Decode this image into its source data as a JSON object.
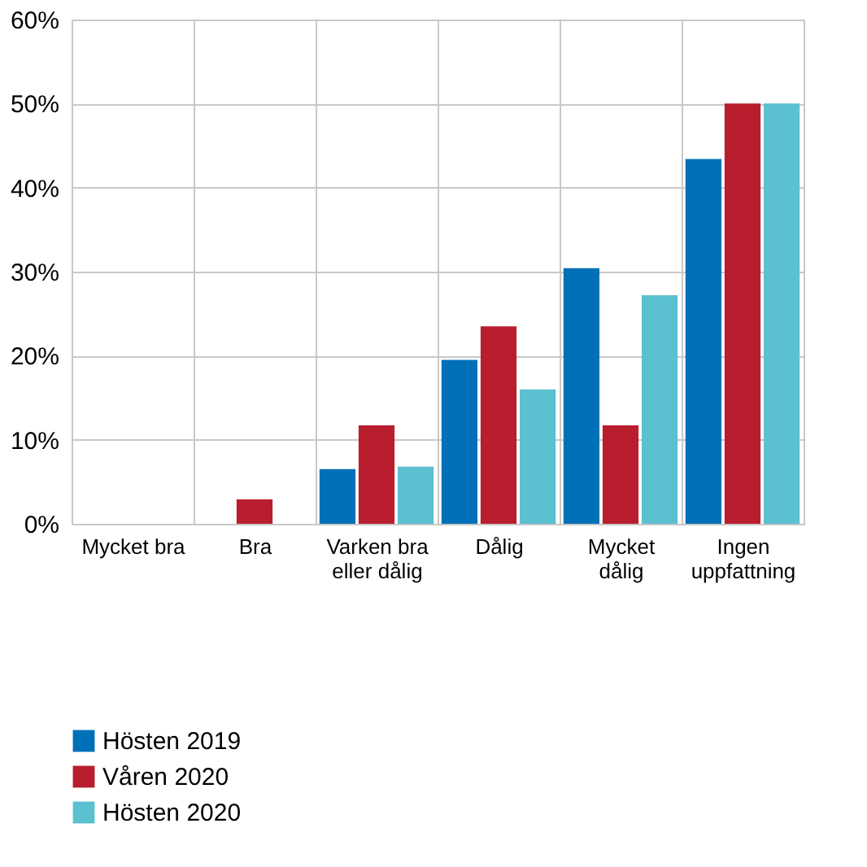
{
  "chart_data": {
    "type": "bar",
    "categories": [
      "Mycket bra",
      "Bra",
      "Varken bra\neller dålig",
      "Dålig",
      "Mycket\ndålig",
      "Ingen\nuppfattning"
    ],
    "series": [
      {
        "name": "Hösten 2019",
        "color": "#0070b8",
        "values": [
          0,
          0,
          6.5,
          19.5,
          30.4,
          43.4
        ]
      },
      {
        "name": "Våren 2020",
        "color": "#b81e2d",
        "values": [
          0,
          2.9,
          11.7,
          23.5,
          11.7,
          50
        ]
      },
      {
        "name": "Hösten 2020",
        "color": "#5bc0d0",
        "values": [
          0,
          0,
          6.8,
          16,
          27.2,
          50
        ]
      }
    ],
    "ylim": [
      0,
      60
    ],
    "yticks": [
      {
        "value": 0,
        "label": "0%"
      },
      {
        "value": 10,
        "label": "10%"
      },
      {
        "value": 20,
        "label": "20%"
      },
      {
        "value": 30,
        "label": "30%"
      },
      {
        "value": 40,
        "label": "40%"
      },
      {
        "value": 50,
        "label": "50%"
      },
      {
        "value": 60,
        "label": "60%"
      }
    ],
    "grid": true,
    "legend": "bottom left"
  }
}
